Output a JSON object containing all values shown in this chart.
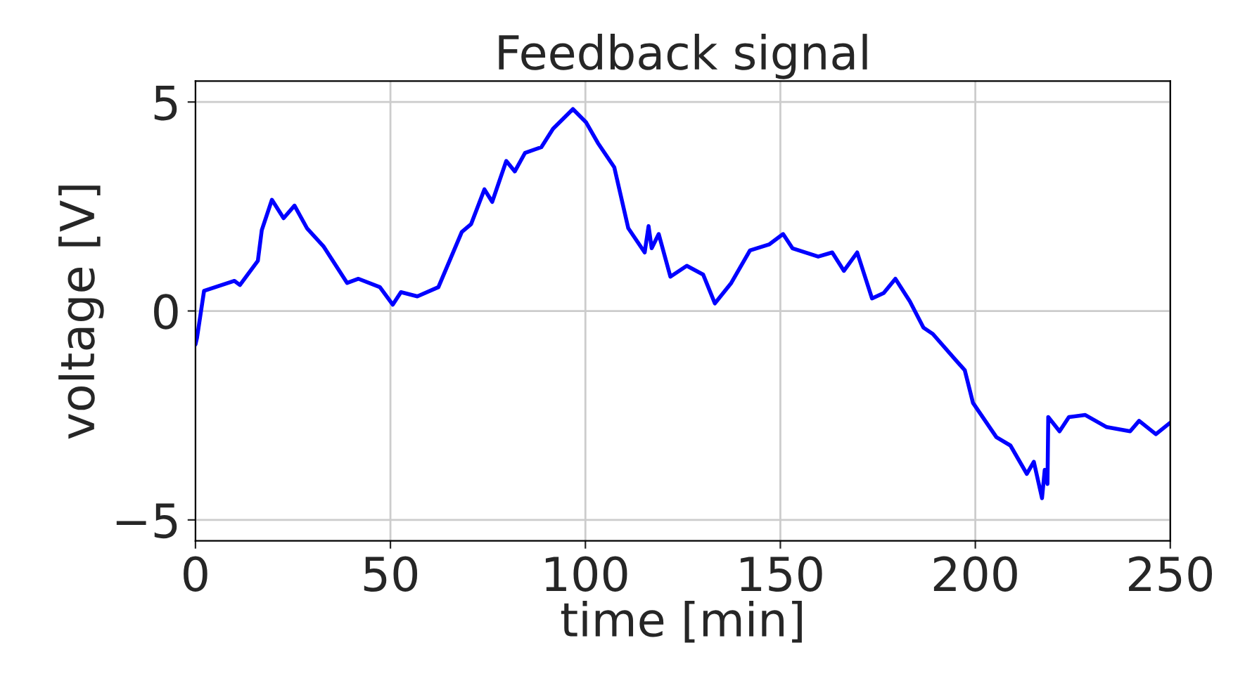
{
  "chart_data": {
    "type": "line",
    "title": "Feedback signal",
    "xlabel": "time [min]",
    "ylabel": "voltage [V]",
    "x": [
      0,
      0.4,
      2.2,
      10,
      11.4,
      16,
      17,
      19.6,
      22.6,
      25.4,
      28.6,
      32.8,
      38.9,
      41.8,
      47.3,
      50.6,
      52.7,
      56.9,
      62.3,
      68.3,
      70.7,
      74.1,
      76.1,
      79.7,
      81.9,
      84.5,
      88.7,
      91.7,
      96.8,
      100.2,
      103.2,
      107.4,
      111,
      115.2,
      116.2,
      117,
      118.8,
      121.8,
      126,
      130.2,
      133.2,
      137.4,
      142.2,
      147.1,
      150.7,
      153.1,
      159.7,
      163.3,
      166.3,
      169.7,
      173.5,
      176.5,
      179.5,
      183.2,
      186.7,
      189.1,
      195.2,
      197.3,
      199.4,
      205.4,
      209,
      213.2,
      215,
      217.1,
      217.8,
      218.5,
      218.7,
      221.6,
      224,
      228.2,
      233.7,
      239.7,
      242,
      246.3,
      249.9
    ],
    "series": [
      {
        "color": "#0000ff",
        "values": [
          -0.8,
          -0.64,
          0.48,
          0.72,
          0.62,
          1.2,
          1.93,
          2.66,
          2.22,
          2.52,
          1.98,
          1.55,
          0.67,
          0.77,
          0.57,
          0.15,
          0.45,
          0.35,
          0.57,
          1.89,
          2.08,
          2.91,
          2.61,
          3.59,
          3.34,
          3.78,
          3.92,
          4.36,
          4.83,
          4.51,
          4.02,
          3.44,
          1.98,
          1.4,
          2.03,
          1.5,
          1.84,
          0.82,
          1.08,
          0.87,
          0.18,
          0.67,
          1.45,
          1.59,
          1.84,
          1.5,
          1.3,
          1.4,
          0.96,
          1.4,
          0.3,
          0.43,
          0.77,
          0.23,
          -0.4,
          -0.55,
          -1.2,
          -1.42,
          -2.2,
          -3.02,
          -3.22,
          -3.9,
          -3.61,
          -4.48,
          -3.8,
          -4.14,
          -2.54,
          -2.88,
          -2.54,
          -2.49,
          -2.78,
          -2.88,
          -2.63,
          -2.95,
          -2.68
        ]
      }
    ],
    "xlim": [
      0,
      250
    ],
    "xticks": [
      0,
      50,
      100,
      150,
      200,
      250
    ],
    "ylim": [
      -5.5,
      5.5
    ],
    "yticks": [
      {
        "value": -5,
        "label": "−5"
      },
      0,
      5
    ],
    "grid": true,
    "line_style": "solid"
  }
}
